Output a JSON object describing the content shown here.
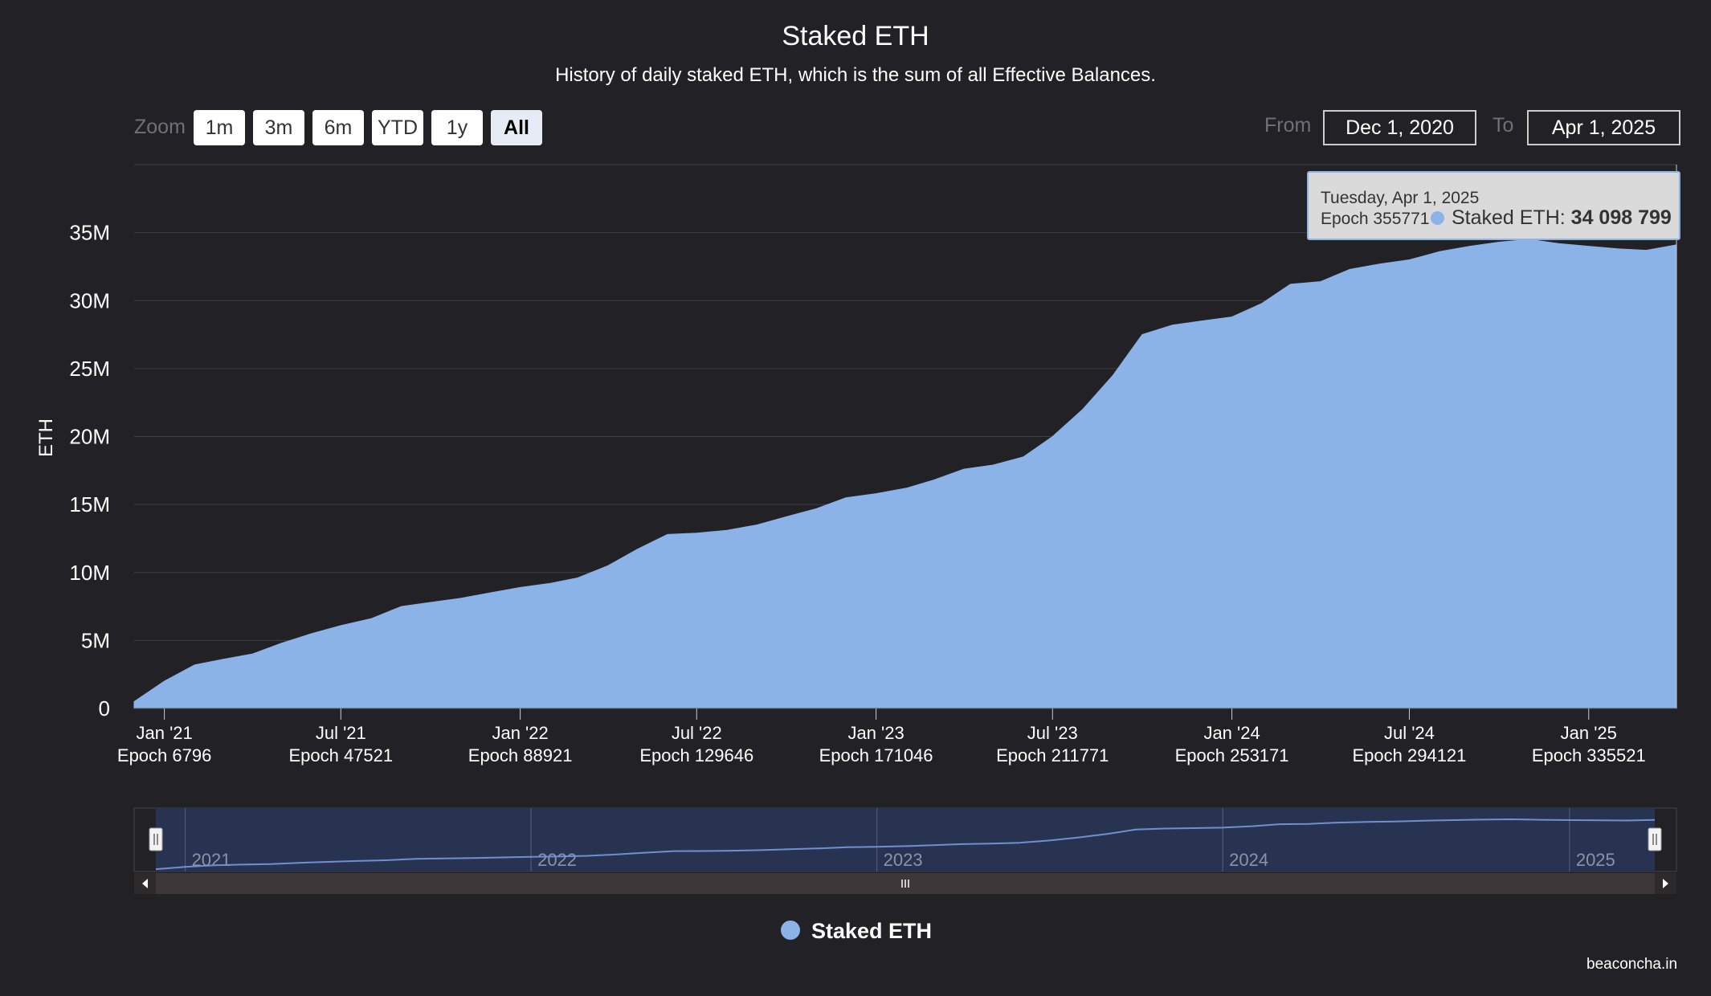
{
  "header": {
    "title": "Staked ETH",
    "subtitle": "History of daily staked ETH, which is the sum of all Effective Balances."
  },
  "zoom": {
    "label": "Zoom",
    "buttons": [
      "1m",
      "3m",
      "6m",
      "YTD",
      "1y",
      "All"
    ],
    "active": "All"
  },
  "range": {
    "from_label": "From",
    "from_value": "Dec 1, 2020",
    "to_label": "To",
    "to_value": "Apr 1, 2025"
  },
  "tooltip": {
    "date": "Tuesday, Apr 1, 2025",
    "epoch": "Epoch 355771",
    "series": "Staked ETH: ",
    "value": "34 098 799"
  },
  "legend": {
    "label": "Staked ETH"
  },
  "credits": "beaconcha.in",
  "colors": {
    "background": "#222126",
    "series": "#8cb3e8",
    "navigator_mask": "#273351",
    "scrollbar": "#3d3739"
  },
  "chart_data": {
    "type": "area",
    "title": "Staked ETH",
    "ylabel": "ETH",
    "ylim": [
      0,
      40000000
    ],
    "y_ticks": [
      {
        "value": 0,
        "label": "0"
      },
      {
        "value": 5000000,
        "label": "5M"
      },
      {
        "value": 10000000,
        "label": "10M"
      },
      {
        "value": 15000000,
        "label": "15M"
      },
      {
        "value": 20000000,
        "label": "20M"
      },
      {
        "value": 25000000,
        "label": "25M"
      },
      {
        "value": 30000000,
        "label": "30M"
      },
      {
        "value": 35000000,
        "label": "35M"
      }
    ],
    "xlim": [
      "2020-12-01",
      "2025-04-01"
    ],
    "x_ticks": [
      {
        "date": "2021-01-01",
        "label": "Jan '21",
        "epoch": "Epoch 6796"
      },
      {
        "date": "2021-07-01",
        "label": "Jul '21",
        "epoch": "Epoch 47521"
      },
      {
        "date": "2022-01-01",
        "label": "Jan '22",
        "epoch": "Epoch 88921"
      },
      {
        "date": "2022-07-01",
        "label": "Jul '22",
        "epoch": "Epoch 129646"
      },
      {
        "date": "2023-01-01",
        "label": "Jan '23",
        "epoch": "Epoch 171046"
      },
      {
        "date": "2023-07-01",
        "label": "Jul '23",
        "epoch": "Epoch 211771"
      },
      {
        "date": "2024-01-01",
        "label": "Jan '24",
        "epoch": "Epoch 253171"
      },
      {
        "date": "2024-07-01",
        "label": "Jul '24",
        "epoch": "Epoch 294121"
      },
      {
        "date": "2025-01-01",
        "label": "Jan '25",
        "epoch": "Epoch 335521"
      }
    ],
    "navigator_years": [
      {
        "date": "2021-01-01",
        "label": "2021"
      },
      {
        "date": "2022-01-01",
        "label": "2022"
      },
      {
        "date": "2023-01-01",
        "label": "2023"
      },
      {
        "date": "2024-01-01",
        "label": "2024"
      },
      {
        "date": "2025-01-01",
        "label": "2025"
      }
    ],
    "series": [
      {
        "name": "Staked ETH",
        "points": [
          [
            "2020-12-01",
            500000
          ],
          [
            "2021-01-01",
            2000000
          ],
          [
            "2021-02-01",
            3200000
          ],
          [
            "2021-03-01",
            3600000
          ],
          [
            "2021-04-01",
            4000000
          ],
          [
            "2021-05-01",
            4800000
          ],
          [
            "2021-06-01",
            5500000
          ],
          [
            "2021-07-01",
            6100000
          ],
          [
            "2021-08-01",
            6600000
          ],
          [
            "2021-09-01",
            7500000
          ],
          [
            "2021-10-01",
            7800000
          ],
          [
            "2021-11-01",
            8100000
          ],
          [
            "2021-12-01",
            8500000
          ],
          [
            "2022-01-01",
            8900000
          ],
          [
            "2022-02-01",
            9200000
          ],
          [
            "2022-03-01",
            9600000
          ],
          [
            "2022-04-01",
            10500000
          ],
          [
            "2022-05-01",
            11700000
          ],
          [
            "2022-06-01",
            12800000
          ],
          [
            "2022-07-01",
            12900000
          ],
          [
            "2022-08-01",
            13100000
          ],
          [
            "2022-09-01",
            13500000
          ],
          [
            "2022-10-01",
            14100000
          ],
          [
            "2022-11-01",
            14700000
          ],
          [
            "2022-12-01",
            15500000
          ],
          [
            "2023-01-01",
            15800000
          ],
          [
            "2023-02-01",
            16200000
          ],
          [
            "2023-03-01",
            16800000
          ],
          [
            "2023-04-01",
            17600000
          ],
          [
            "2023-05-01",
            17900000
          ],
          [
            "2023-06-01",
            18500000
          ],
          [
            "2023-07-01",
            20000000
          ],
          [
            "2023-08-01",
            22000000
          ],
          [
            "2023-09-01",
            24500000
          ],
          [
            "2023-10-01",
            27500000
          ],
          [
            "2023-11-01",
            28200000
          ],
          [
            "2023-12-01",
            28500000
          ],
          [
            "2024-01-01",
            28800000
          ],
          [
            "2024-02-01",
            29800000
          ],
          [
            "2024-03-01",
            31200000
          ],
          [
            "2024-04-01",
            31400000
          ],
          [
            "2024-05-01",
            32300000
          ],
          [
            "2024-06-01",
            32700000
          ],
          [
            "2024-07-01",
            33000000
          ],
          [
            "2024-08-01",
            33600000
          ],
          [
            "2024-09-01",
            34000000
          ],
          [
            "2024-10-01",
            34300000
          ],
          [
            "2024-11-01",
            34500000
          ],
          [
            "2024-12-01",
            34200000
          ],
          [
            "2025-01-01",
            34000000
          ],
          [
            "2025-02-01",
            33800000
          ],
          [
            "2025-03-01",
            33700000
          ],
          [
            "2025-04-01",
            34098799
          ]
        ]
      }
    ]
  }
}
